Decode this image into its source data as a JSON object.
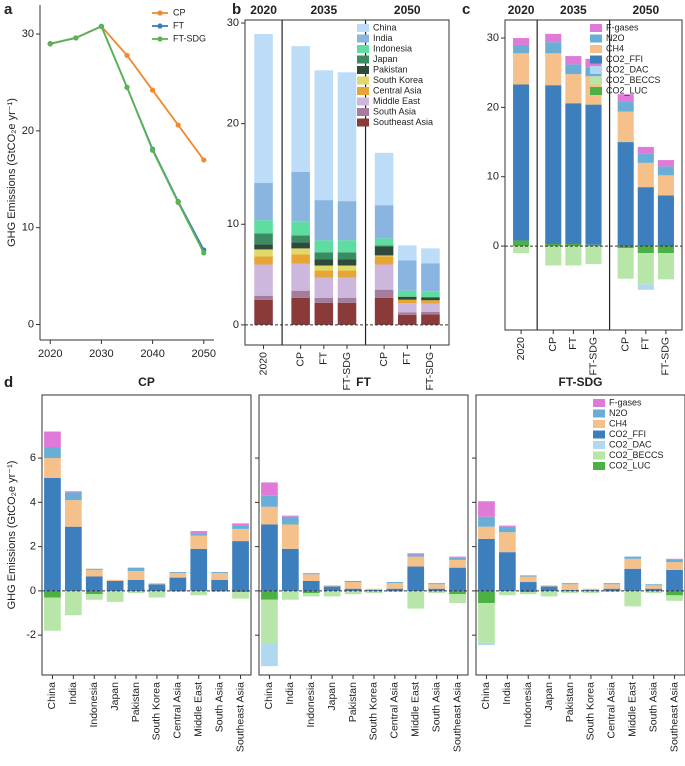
{
  "chart_data": [
    {
      "label": "a",
      "type": "line",
      "ylabel": "GHG Emissions (GtCO₂e yr⁻¹)",
      "x": [
        2020,
        2025,
        2030,
        2035,
        2040,
        2045,
        2050
      ],
      "xlim": [
        2018,
        2052
      ],
      "xticks": [
        2020,
        2030,
        2040,
        2050
      ],
      "ylim": [
        -1.6,
        33
      ],
      "yticks": [
        0,
        10,
        20,
        30
      ],
      "legend": "upper right",
      "series": [
        {
          "name": "CP",
          "color": "#f08a2c",
          "values": [
            29.0,
            29.6,
            30.8,
            27.8,
            24.2,
            20.6,
            17.0
          ]
        },
        {
          "name": "FT",
          "color": "#3a7dbf",
          "values": [
            29.0,
            29.6,
            30.8,
            24.5,
            18.1,
            12.7,
            7.7
          ]
        },
        {
          "name": "FT-SDG",
          "color": "#5bb450",
          "values": [
            29.0,
            29.6,
            30.8,
            24.5,
            18.0,
            12.6,
            7.4
          ]
        }
      ]
    },
    {
      "label": "b",
      "type": "bar",
      "stacked": true,
      "groups": [
        {
          "name": "2020",
          "categories": [
            "2020"
          ]
        },
        {
          "name": "2035",
          "categories": [
            "CP",
            "FT",
            "FT-SDG"
          ]
        },
        {
          "name": "2050",
          "categories": [
            "CP",
            "FT",
            "FT-SDG"
          ]
        }
      ],
      "ylim": [
        -2,
        30.3
      ],
      "yticks": [
        0,
        10,
        20,
        30
      ],
      "legend": "upper right",
      "series": [
        {
          "name": "China",
          "color": "#bcdcf7",
          "values": [
            14.8,
            12.5,
            12.9,
            12.8,
            5.2,
            1.5,
            1.5
          ]
        },
        {
          "name": "India",
          "color": "#89b5e0",
          "values": [
            3.7,
            4.9,
            4.0,
            3.9,
            3.3,
            3.0,
            2.75
          ]
        },
        {
          "name": "Indonesia",
          "color": "#5fdca0",
          "values": [
            1.3,
            1.4,
            1.2,
            1.2,
            0.7,
            0.6,
            0.6
          ]
        },
        {
          "name": "Japan",
          "color": "#3c8a63",
          "values": [
            1.1,
            0.7,
            0.7,
            0.7,
            0.1,
            0,
            0
          ]
        },
        {
          "name": "Pakistan",
          "color": "#2d4a3a",
          "values": [
            0.5,
            0.6,
            0.6,
            0.6,
            0.9,
            0.3,
            0.3
          ]
        },
        {
          "name": "South Korea",
          "color": "#e3d86a",
          "values": [
            0.7,
            0.6,
            0.5,
            0.5,
            0.1,
            0,
            0
          ]
        },
        {
          "name": "Central Asia",
          "color": "#e6a535",
          "values": [
            0.8,
            0.9,
            0.7,
            0.7,
            0.8,
            0.35,
            0.35
          ]
        },
        {
          "name": "Middle East",
          "color": "#cdb7dc",
          "values": [
            3.1,
            2.7,
            2.0,
            2.0,
            2.5,
            0.9,
            0.8
          ]
        },
        {
          "name": "South Asia",
          "color": "#a57c9e",
          "values": [
            0.4,
            0.7,
            0.5,
            0.5,
            0.8,
            0.25,
            0.25
          ]
        },
        {
          "name": "Southeast Asia",
          "color": "#8b3a3a",
          "values": [
            2.5,
            2.7,
            2.2,
            2.2,
            2.7,
            1.0,
            1.05
          ]
        }
      ]
    },
    {
      "label": "c",
      "type": "bar",
      "stacked": true,
      "groups": [
        {
          "name": "2020",
          "categories": [
            "2020"
          ]
        },
        {
          "name": "2035",
          "categories": [
            "CP",
            "FT",
            "FT-SDG"
          ]
        },
        {
          "name": "2050",
          "categories": [
            "CP",
            "FT",
            "FT-SDG"
          ]
        }
      ],
      "ylim": [
        -12.1,
        32.6
      ],
      "yticks": [
        0,
        10,
        20,
        30
      ],
      "legend": "upper right",
      "series": [
        {
          "name": "F-gases",
          "color": "#e07ad8",
          "values": [
            1.0,
            1.2,
            1.2,
            1.2,
            1.0,
            0.9,
            0.9
          ]
        },
        {
          "name": "N2O",
          "color": "#6aaed6",
          "values": [
            1.2,
            1.6,
            1.4,
            1.3,
            1.5,
            1.4,
            1.3
          ]
        },
        {
          "name": "CH4",
          "color": "#f5c08a",
          "values": [
            4.5,
            4.6,
            4.2,
            4.1,
            4.4,
            3.5,
            2.9
          ]
        },
        {
          "name": "CO2_FFI",
          "color": "#3d7fbd",
          "values": [
            22.5,
            22.9,
            20.3,
            20.2,
            15.0,
            8.5,
            7.3
          ]
        },
        {
          "name": "CO2_DAC",
          "color": "#b0d8f0",
          "values": [
            0,
            0,
            0,
            0,
            0,
            -0.8,
            0
          ]
        },
        {
          "name": "CO2_BECCS",
          "color": "#b8e6a8",
          "values": [
            -1.0,
            -2.8,
            -2.8,
            -2.6,
            -4.4,
            -4.5,
            -3.8
          ]
        },
        {
          "name": "CO2_LUC",
          "color": "#4db042",
          "values": [
            0.8,
            0.3,
            0.3,
            0.2,
            -0.3,
            -1.0,
            -1.0
          ]
        }
      ]
    },
    {
      "label": "d",
      "type": "bar",
      "stacked": true,
      "ylabel": "GHG Emissions (GtCO₂e yr⁻¹)",
      "panels": [
        "CP",
        "FT",
        "FT-SDG"
      ],
      "categories": [
        "China",
        "India",
        "Indonesia",
        "Japan",
        "Pakistan",
        "South Korea",
        "Central Asia",
        "Middle East",
        "South Asia",
        "Southeast Asia"
      ],
      "ylim": [
        -3.8,
        8.85
      ],
      "yticks": [
        -2,
        0,
        2,
        4,
        6
      ],
      "legend": "upper right",
      "series": [
        {
          "name": "F-gases",
          "color": "#e07ad8",
          "values": [
            [
              0.7,
              0.05,
              0,
              0,
              0,
              0,
              0,
              0.1,
              0,
              0.1
            ],
            [
              0.6,
              0.05,
              0,
              0,
              0,
              0,
              0,
              0.05,
              0,
              0.05
            ],
            [
              0.7,
              0.05,
              0,
              0,
              0,
              0,
              0,
              0,
              0,
              0.05
            ]
          ]
        },
        {
          "name": "N2O",
          "color": "#6aaed6",
          "values": [
            [
              0.5,
              0.35,
              0.05,
              0,
              0.15,
              0,
              0.05,
              0.1,
              0.05,
              0.15
            ],
            [
              0.5,
              0.35,
              0.05,
              0,
              0.05,
              0,
              0.05,
              0.1,
              0.05,
              0.1
            ],
            [
              0.45,
              0.25,
              0.05,
              0,
              0.05,
              0,
              0.05,
              0.1,
              0.05,
              0.1
            ]
          ]
        },
        {
          "name": "CH4",
          "color": "#f5c08a",
          "values": [
            [
              0.9,
              1.2,
              0.3,
              0.05,
              0.4,
              0.05,
              0.2,
              0.6,
              0.3,
              0.55
            ],
            [
              0.8,
              1.1,
              0.3,
              0.05,
              0.3,
              0.05,
              0.25,
              0.45,
              0.2,
              0.35
            ],
            [
              0.55,
              0.9,
              0.25,
              0.05,
              0.25,
              0.05,
              0.2,
              0.45,
              0.15,
              0.35
            ]
          ]
        },
        {
          "name": "CO2_FFI",
          "color": "#3d7fbd",
          "values": [
            [
              5.1,
              2.9,
              0.65,
              0.45,
              0.5,
              0.3,
              0.6,
              1.9,
              0.5,
              2.25
            ],
            [
              3.0,
              1.9,
              0.45,
              0.2,
              0.1,
              0.05,
              0.1,
              1.1,
              0.1,
              1.05
            ],
            [
              2.35,
              1.75,
              0.4,
              0.2,
              0.05,
              0.05,
              0.1,
              1.0,
              0.1,
              0.95
            ]
          ]
        },
        {
          "name": "CO2_DAC",
          "color": "#b0d8f0",
          "values": [
            [
              0,
              0,
              0,
              0,
              0,
              0,
              0,
              0,
              0,
              0
            ],
            [
              -1.0,
              0,
              0,
              0,
              0,
              0,
              0,
              0,
              0,
              0
            ],
            [
              -0.1,
              0,
              0,
              0,
              0,
              0,
              0,
              0,
              0,
              0
            ]
          ]
        },
        {
          "name": "CO2_BECCS",
          "color": "#b8e6a8",
          "values": [
            [
              -1.5,
              -1.1,
              -0.25,
              -0.5,
              -0.1,
              -0.3,
              -0.05,
              -0.2,
              -0.05,
              -0.3
            ],
            [
              -2.0,
              -0.4,
              -0.15,
              -0.25,
              -0.15,
              -0.1,
              -0.05,
              -0.8,
              -0.1,
              -0.4
            ],
            [
              -1.8,
              -0.2,
              -0.1,
              -0.25,
              -0.1,
              -0.1,
              -0.05,
              -0.7,
              -0.1,
              -0.25
            ]
          ]
        },
        {
          "name": "CO2_LUC",
          "color": "#4db042",
          "values": [
            [
              -0.3,
              0,
              -0.15,
              0,
              0,
              0,
              0,
              0,
              0,
              -0.05
            ],
            [
              -0.4,
              0,
              -0.1,
              0,
              0,
              0,
              0,
              0,
              0,
              -0.15
            ],
            [
              -0.55,
              0,
              -0.05,
              0,
              0,
              0,
              0,
              0,
              0,
              -0.2
            ]
          ]
        }
      ]
    }
  ]
}
